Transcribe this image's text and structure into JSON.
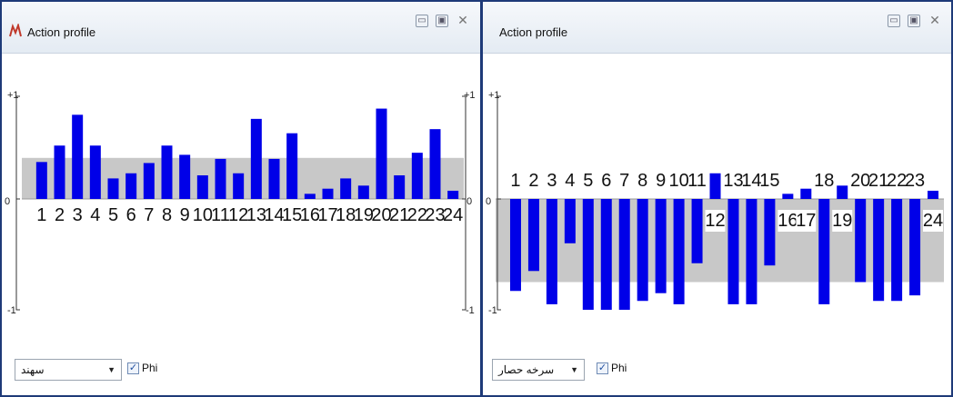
{
  "windows": [
    {
      "title": "Action profile",
      "select_value": "سهند",
      "checkbox_label": "Phi",
      "checkbox_checked": true,
      "axis": {
        "top": "+1",
        "zero": "0",
        "bottom": "-1"
      }
    },
    {
      "title": "Action profile",
      "select_value": "سرخه حصار",
      "checkbox_label": "Phi",
      "checkbox_checked": true,
      "axis": {
        "top": "+1",
        "zero": "0",
        "bottom": "-1"
      }
    }
  ],
  "colors": {
    "bar": "#0000e8",
    "band": "#c8c8c8",
    "title_bg": "#eef2f7",
    "frame": "#1e3a78"
  },
  "chart_data": [
    {
      "type": "bar",
      "categories": [
        "1",
        "2",
        "3",
        "4",
        "5",
        "6",
        "7",
        "8",
        "9",
        "10",
        "11",
        "12",
        "13",
        "14",
        "15",
        "16",
        "17",
        "18",
        "19",
        "20",
        "21",
        "22",
        "23",
        "24"
      ],
      "series": [
        {
          "values": [
            0.36,
            0.52,
            0.82,
            0.52,
            0.2,
            0.25,
            0.35,
            0.52,
            0.43,
            0.23,
            0.39,
            0.25,
            0.78,
            0.39,
            0.64,
            0.05,
            0.1,
            0.2,
            0.13,
            0.88,
            0.23,
            0.45,
            0.68,
            0.08
          ]
        }
      ],
      "band": [
        0,
        0.4
      ],
      "ylim": [
        -1,
        1
      ],
      "ticks": [
        "+1",
        "0",
        "-1"
      ]
    },
    {
      "type": "bar",
      "categories": [
        "1",
        "2",
        "3",
        "4",
        "5",
        "6",
        "7",
        "8",
        "9",
        "10",
        "11",
        "12",
        "13",
        "14",
        "15",
        "16",
        "17",
        "18",
        "19",
        "20",
        "21",
        "22",
        "23",
        "24"
      ],
      "series": [
        {
          "values": [
            -0.83,
            -0.65,
            -0.95,
            -0.4,
            -1.0,
            -1.0,
            -1.0,
            -0.92,
            -0.85,
            -0.95,
            -0.58,
            0.25,
            -0.95,
            -0.95,
            -0.6,
            0.05,
            0.1,
            -0.95,
            0.13,
            -0.75,
            -0.92,
            -0.92,
            -0.87,
            0.08
          ]
        }
      ],
      "band": [
        -0.75,
        0
      ],
      "ylim": [
        -1,
        1
      ],
      "ticks": [
        "+1",
        "0",
        "-1"
      ]
    }
  ]
}
